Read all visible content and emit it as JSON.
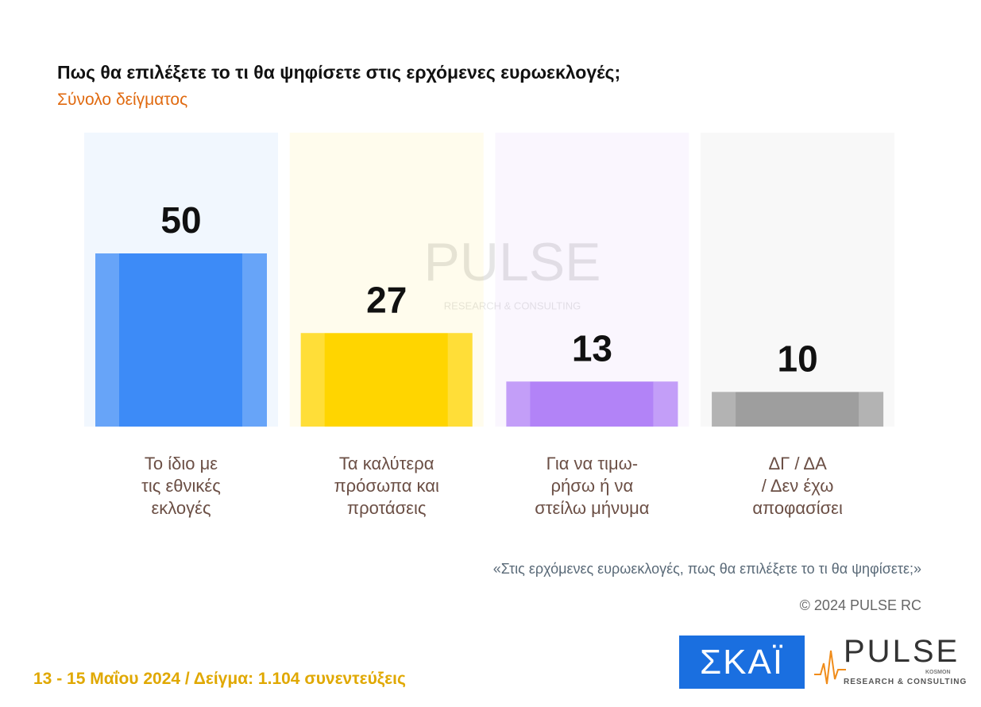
{
  "chart_data": {
    "type": "bar",
    "title": "Πως θα επιλέξετε το τι θα ψηφίσετε στις ερχόμενες ευρωεκλογές;",
    "subtitle": "Σύνολο δείγματος",
    "categories": [
      "Το ίδιο με\nτις εθνικές\nεκλογές",
      "Τα καλύτερα\nπρόσωπα και\nπροτάσεις",
      "Για να τιμω-\nρήσω ή να\nστείλω μήνυμα",
      "ΔΓ / ΔΑ\n/ Δεν έχω\nαποφασίσει"
    ],
    "values": [
      50,
      27,
      13,
      10
    ],
    "colors": [
      "#3d8bf7",
      "#ffd500",
      "#b283f7",
      "#9e9e9e"
    ],
    "question": "«Στις ερχόμενες ευρωεκλογές, πως θα επιλέξετε το τι θα ψηφίσετε;»",
    "copyright": "© 2024 PULSE RC"
  },
  "footer": {
    "fieldwork": "13 - 15  Μαΐου 2024  /  Δείγμα:  1.104 συνεντεύξεις"
  },
  "logos": {
    "skai": "ΣΚΑΪ",
    "pulse": "PULSE",
    "pulse_sub": "RESEARCH & CONSULTING",
    "pulse_tag": "KOSMON"
  }
}
